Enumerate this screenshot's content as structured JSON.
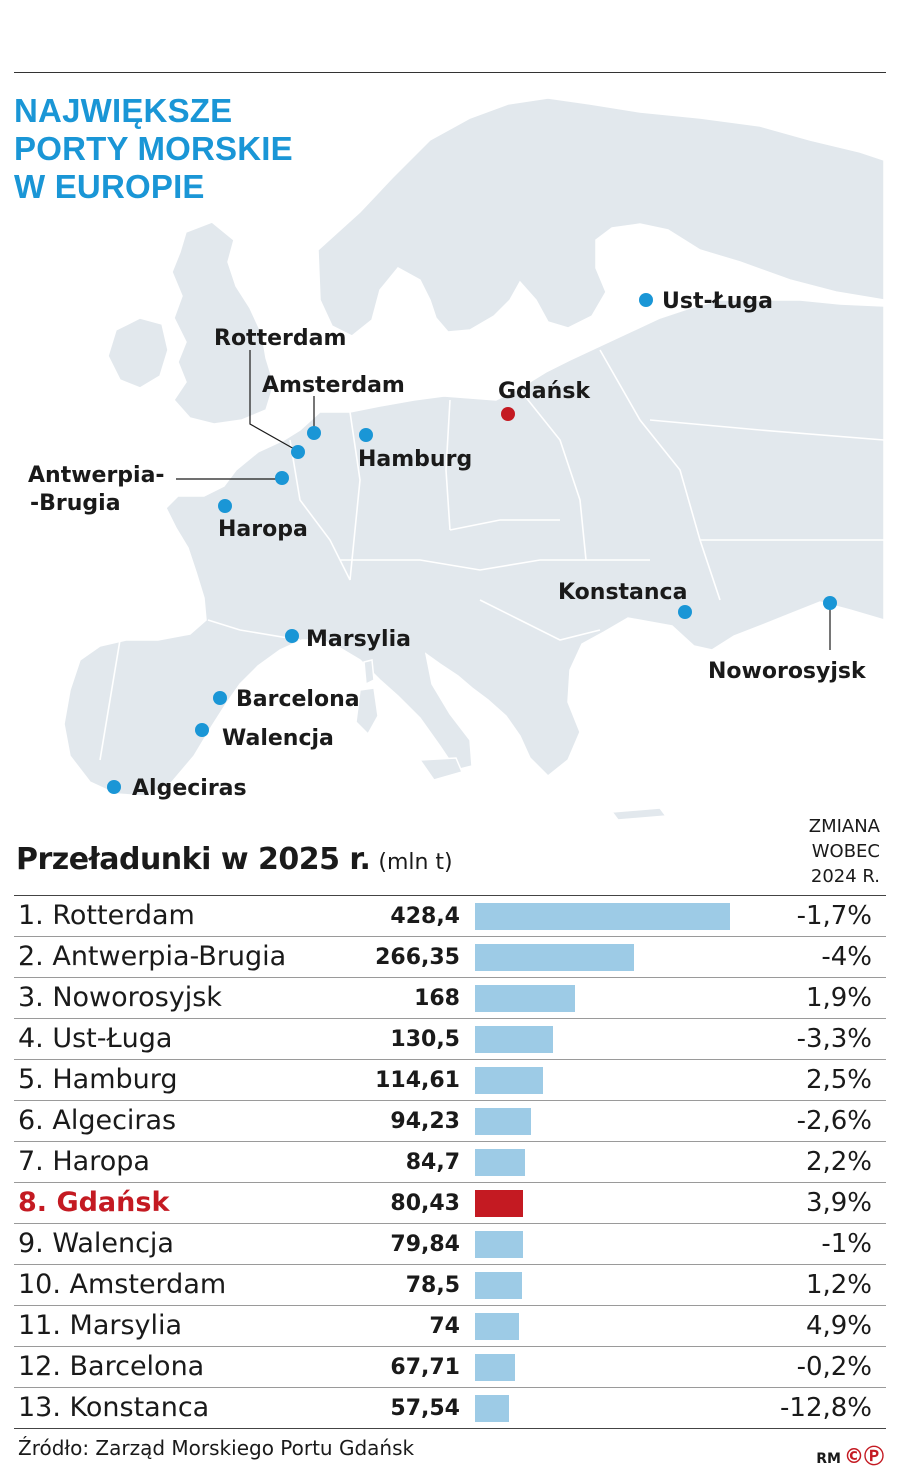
{
  "title_lines": [
    "NAJWIĘKSZE",
    "PORTY MORSKIE",
    "W EUROPIE"
  ],
  "colors": {
    "title": "#1a96d6",
    "bar": "#9dcbe6",
    "highlight": "#c41a22",
    "land": "#e2e8ed",
    "port_dot": "#1a96d6"
  },
  "map": {
    "ports": [
      {
        "name": "Rotterdam",
        "highlight": false
      },
      {
        "name": "Amsterdam",
        "highlight": false
      },
      {
        "name": "Antwerpia-",
        "name2": "-Brugia",
        "highlight": false
      },
      {
        "name": "Haropa",
        "highlight": false
      },
      {
        "name": "Hamburg",
        "highlight": false
      },
      {
        "name": "Gdańsk",
        "highlight": true
      },
      {
        "name": "Ust-Ługa",
        "highlight": false
      },
      {
        "name": "Marsylia",
        "highlight": false
      },
      {
        "name": "Barcelona",
        "highlight": false
      },
      {
        "name": "Walencja",
        "highlight": false
      },
      {
        "name": "Algeciras",
        "highlight": false
      },
      {
        "name": "Konstanca",
        "highlight": false
      },
      {
        "name": "Noworosyjsk",
        "highlight": false
      }
    ]
  },
  "chart_data": {
    "type": "bar",
    "title": "Przeładunki w 2025 r.",
    "unit": "(mln t)",
    "change_header": [
      "ZMIANA",
      "WOBEC",
      "2024 R."
    ],
    "categories": [
      "1. Rotterdam",
      "2. Antwerpia-Brugia",
      "3. Noworosyjsk",
      "4. Ust-Ługa",
      "5. Hamburg",
      "6. Algeciras",
      "7. Haropa",
      "8. Gdańsk",
      "9. Walencja",
      "10. Amsterdam",
      "11. Marsylia",
      "12. Barcelona",
      "13. Konstanca"
    ],
    "values": [
      428.4,
      266.35,
      168,
      130.5,
      114.61,
      94.23,
      84.7,
      80.43,
      79.84,
      78.5,
      74,
      67.71,
      57.54
    ],
    "value_labels": [
      "428,4",
      "266,35",
      "168",
      "130,5",
      "114,61",
      "94,23",
      "84,7",
      "80,43",
      "79,84",
      "78,5",
      "74",
      "67,71",
      "57,54"
    ],
    "changes": [
      "-1,7%",
      "-4%",
      "1,9%",
      "-3,3%",
      "2,5%",
      "-2,6%",
      "2,2%",
      "3,9%",
      "-1%",
      "1,2%",
      "4,9%",
      "-0,2%",
      "-12,8%"
    ],
    "highlight_index": 7,
    "xlim": [
      0,
      428.4
    ]
  },
  "source": "Źródło: Zarząd Morskiego Portu Gdańsk",
  "credit": {
    "initials": "RM",
    "mark": "©Ⓟ"
  }
}
